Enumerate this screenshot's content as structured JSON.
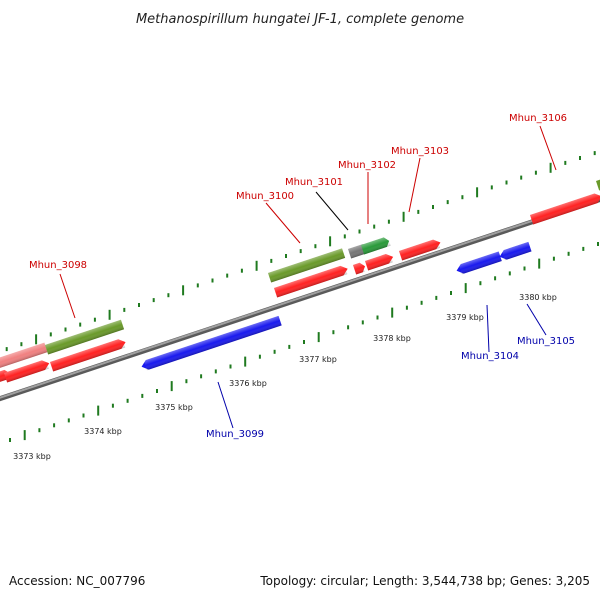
{
  "title": "Methanospirillum hungatei JF-1, complete genome",
  "footer": {
    "accession": "Accession: NC_007796",
    "summary": "Topology: circular; Length: 3,544,738 bp; Genes: 3,205"
  },
  "colors": {
    "backbone": "#888888",
    "tick": "#1f7a1f",
    "forward_label": "#cc0000",
    "reverse_label": "#0000aa",
    "cds_red": "#ff2222",
    "cds_blue": "#1a1aee",
    "cds_olive": "#6a9a2a",
    "cds_green": "#2a9a3a",
    "cds_pink": "#f08080",
    "cds_gray": "#777777"
  },
  "axis": {
    "unit": "kbp",
    "labels": [
      "3373 kbp",
      "3374 kbp",
      "3375 kbp",
      "3376 kbp",
      "3377 kbp",
      "3378 kbp",
      "3379 kbp",
      "3380 kbp"
    ]
  },
  "genes": [
    {
      "name": "Mhun_3098",
      "strand": "forward"
    },
    {
      "name": "Mhun_3099",
      "strand": "reverse"
    },
    {
      "name": "Mhun_3100",
      "strand": "forward"
    },
    {
      "name": "Mhun_3101",
      "strand": "forward"
    },
    {
      "name": "Mhun_3102",
      "strand": "forward"
    },
    {
      "name": "Mhun_3103",
      "strand": "forward"
    },
    {
      "name": "Mhun_3104",
      "strand": "reverse"
    },
    {
      "name": "Mhun_3105",
      "strand": "reverse"
    },
    {
      "name": "Mhun_3106",
      "strand": "forward"
    }
  ]
}
